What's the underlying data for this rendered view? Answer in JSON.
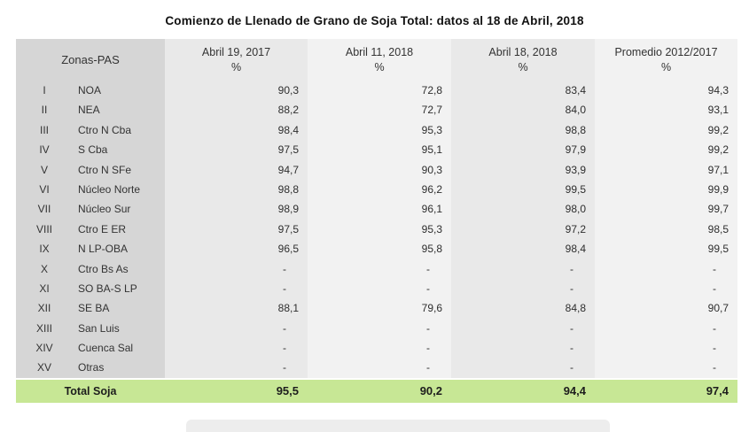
{
  "page": {
    "title": "Comienzo de Llenado de Grano de Soja Total: datos al 18 de Abril, 2018"
  },
  "table": {
    "zone_column_header": "Zonas-PAS",
    "columns": [
      {
        "label": "Abril 19, 2017",
        "unit": "%"
      },
      {
        "label": "Abril 11, 2018",
        "unit": "%"
      },
      {
        "label": "Abril 18, 2018",
        "unit": "%"
      },
      {
        "label": "Promedio 2012/2017",
        "unit": "%"
      }
    ],
    "rows": [
      {
        "numeral": "I",
        "zone": "NOA",
        "values": [
          "90,3",
          "72,8",
          "83,4",
          "94,3"
        ]
      },
      {
        "numeral": "II",
        "zone": "NEA",
        "values": [
          "88,2",
          "72,7",
          "84,0",
          "93,1"
        ]
      },
      {
        "numeral": "III",
        "zone": "Ctro N Cba",
        "values": [
          "98,4",
          "95,3",
          "98,8",
          "99,2"
        ]
      },
      {
        "numeral": "IV",
        "zone": "S Cba",
        "values": [
          "97,5",
          "95,1",
          "97,9",
          "99,2"
        ]
      },
      {
        "numeral": "V",
        "zone": "Ctro N SFe",
        "values": [
          "94,7",
          "90,3",
          "93,9",
          "97,1"
        ]
      },
      {
        "numeral": "VI",
        "zone": "Núcleo Norte",
        "values": [
          "98,8",
          "96,2",
          "99,5",
          "99,9"
        ]
      },
      {
        "numeral": "VII",
        "zone": "Núcleo Sur",
        "values": [
          "98,9",
          "96,1",
          "98,0",
          "99,7"
        ]
      },
      {
        "numeral": "VIII",
        "zone": "Ctro E ER",
        "values": [
          "97,5",
          "95,3",
          "97,2",
          "98,5"
        ]
      },
      {
        "numeral": "IX",
        "zone": "N LP-OBA",
        "values": [
          "96,5",
          "95,8",
          "98,4",
          "99,5"
        ]
      },
      {
        "numeral": "X",
        "zone": "Ctro Bs As",
        "values": [
          "-",
          "-",
          "-",
          "-"
        ]
      },
      {
        "numeral": "XI",
        "zone": "SO BA-S LP",
        "values": [
          "-",
          "-",
          "-",
          "-"
        ]
      },
      {
        "numeral": "XII",
        "zone": "SE BA",
        "values": [
          "88,1",
          "79,6",
          "84,8",
          "90,7"
        ]
      },
      {
        "numeral": "XIII",
        "zone": "San Luis",
        "values": [
          "-",
          "-",
          "-",
          "-"
        ]
      },
      {
        "numeral": "XIV",
        "zone": "Cuenca Sal",
        "values": [
          "-",
          "-",
          "-",
          "-"
        ]
      },
      {
        "numeral": "XV",
        "zone": "Otras",
        "values": [
          "-",
          "-",
          "-",
          "-"
        ]
      }
    ],
    "total_row": {
      "label": "Total Soja",
      "values": [
        "95,5",
        "90,2",
        "94,4",
        "97,4"
      ]
    }
  },
  "colors": {
    "zone_column_bg": "#d6d6d6",
    "column_band_dark": "#e9e9e9",
    "column_band_light": "#f2f2f2",
    "total_row_bg": "#c7e795"
  }
}
